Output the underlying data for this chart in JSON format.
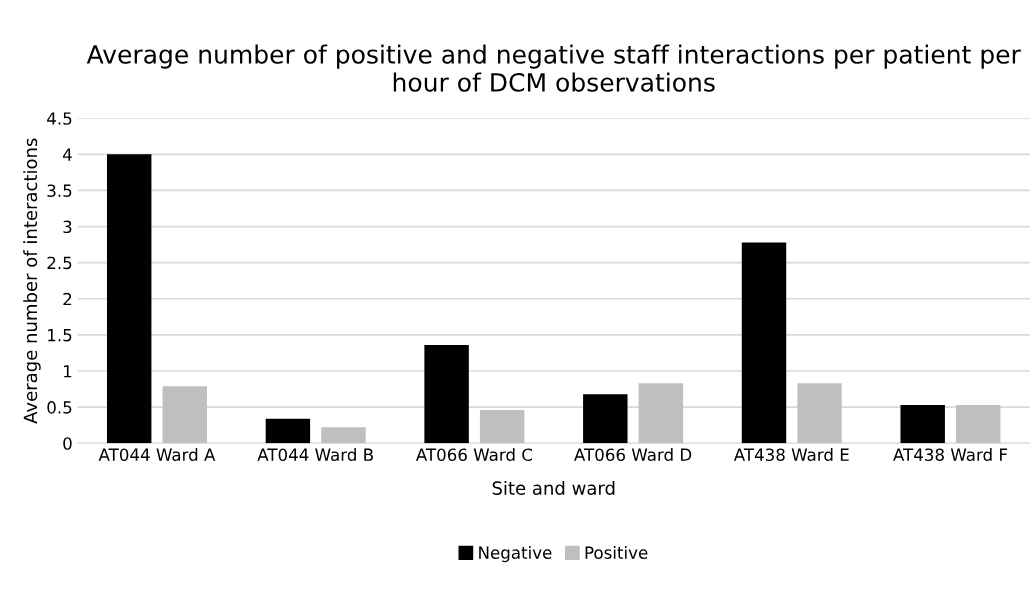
{
  "chart_data": {
    "type": "bar",
    "title": "Average number of positive and negative staff interactions per patient per hour of DCM observations",
    "xlabel": "Site and ward",
    "ylabel": "Average number of interactions",
    "categories": [
      "AT044 Ward A",
      "AT044 Ward B",
      "AT066 Ward C",
      "AT066 Ward D",
      "AT438 Ward E",
      "AT438 Ward F"
    ],
    "series": [
      {
        "name": "Negative",
        "color": "#000000",
        "values": [
          4.0,
          0.34,
          1.36,
          0.68,
          2.78,
          0.53
        ]
      },
      {
        "name": "Positive",
        "color": "#bfbfbf",
        "values": [
          0.79,
          0.22,
          0.46,
          0.83,
          0.83,
          0.53
        ]
      }
    ],
    "ylim": [
      0,
      4.5
    ],
    "yticks": [
      0,
      0.5,
      1,
      1.5,
      2,
      2.5,
      3,
      3.5,
      4,
      4.5
    ],
    "grid": "y",
    "legend": "bottom"
  }
}
